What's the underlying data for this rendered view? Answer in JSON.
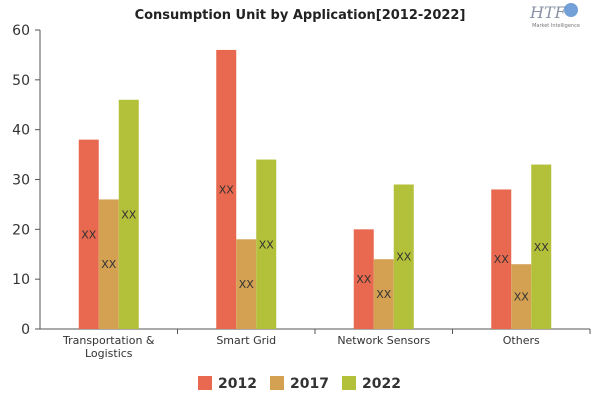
{
  "chart_data": {
    "type": "bar",
    "title": "Consumption Unit by  Application[2012-2022]",
    "categories": [
      [
        "Transportation &",
        "Logistics"
      ],
      [
        "Smart Grid"
      ],
      [
        "Network Sensors"
      ],
      [
        "Others"
      ]
    ],
    "series": [
      {
        "name": "2012",
        "color": "#e8694f",
        "values": [
          38,
          56,
          20,
          28
        ]
      },
      {
        "name": "2017",
        "color": "#d4a153",
        "values": [
          26,
          18,
          14,
          13
        ]
      },
      {
        "name": "2022",
        "color": "#b3c13a",
        "values": [
          46,
          34,
          29,
          33
        ]
      }
    ],
    "data_label": "XX",
    "ylim": [
      0,
      60
    ],
    "yticks": [
      0,
      10,
      20,
      30,
      40,
      50,
      60
    ],
    "grid": false,
    "legend_position": "bottom"
  },
  "logo": {
    "brand": "HTF",
    "sub": "Market Intelligence"
  }
}
